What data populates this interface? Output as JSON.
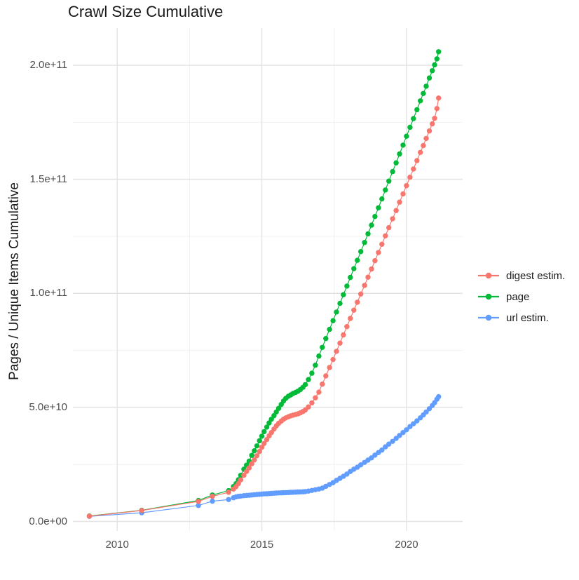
{
  "chart_data": {
    "type": "line",
    "title": "Crawl Size Cumulative",
    "xlabel": "",
    "ylabel": "Pages / Unique Items Cumulative",
    "legend_position": "right",
    "grid": "major+minor",
    "background": "#ffffff",
    "grid_major_color": "#e3e3e3",
    "grid_minor_color": "#f0f0f0",
    "axis_text_color": "#4d4d4d",
    "value_scale": "values_e9 are in units of 1e9 items",
    "xlim": [
      2008.47,
      2021.94
    ],
    "ylim_e9": [
      -4.15,
      216.3
    ],
    "x_tick_values": [
      2010,
      2015,
      2020
    ],
    "x_tick_labels": [
      "2010",
      "2015",
      "2020"
    ],
    "x_minor_ticks": [
      2012.5,
      2017.5
    ],
    "y_tick_values_e9": [
      0,
      50,
      100,
      150,
      200
    ],
    "y_tick_labels": [
      "0.0e+00",
      "5.0e+10",
      "1.0e+11",
      "1.5e+11",
      "2.0e+11"
    ],
    "y_minor_ticks_e9": [
      25,
      75,
      125,
      175
    ],
    "x": [
      2009.04,
      2010.85,
      2012.81,
      2013.29,
      2013.85,
      2014.02,
      2014.11,
      2014.19,
      2014.27,
      2014.38,
      2014.47,
      2014.56,
      2014.65,
      2014.74,
      2014.83,
      2014.92,
      2015.0,
      2015.08,
      2015.17,
      2015.25,
      2015.33,
      2015.42,
      2015.5,
      2015.58,
      2015.67,
      2015.75,
      2015.83,
      2015.92,
      2016.0,
      2016.08,
      2016.17,
      2016.25,
      2016.33,
      2016.42,
      2016.5,
      2016.61,
      2016.73,
      2016.85,
      2016.97,
      2017.09,
      2017.21,
      2017.34,
      2017.46,
      2017.58,
      2017.7,
      2017.82,
      2017.94,
      2018.06,
      2018.18,
      2018.3,
      2018.42,
      2018.55,
      2018.67,
      2018.79,
      2018.91,
      2019.03,
      2019.15,
      2019.27,
      2019.39,
      2019.52,
      2019.64,
      2019.76,
      2019.88,
      2020.0,
      2020.12,
      2020.24,
      2020.36,
      2020.48,
      2020.58,
      2020.68,
      2020.79,
      2020.89,
      2020.97,
      2021.05,
      2021.11
    ],
    "series": [
      {
        "name": "digest estim.",
        "color": "#F8766D",
        "values_e9": [
          2.3,
          4.8,
          8.8,
          11.0,
          12.8,
          14.2,
          15.3,
          16.6,
          18.2,
          20.2,
          21.9,
          23.5,
          25.3,
          27.0,
          28.8,
          30.7,
          32.5,
          34.2,
          35.9,
          37.5,
          39.0,
          40.5,
          41.9,
          43.0,
          44.0,
          44.8,
          45.4,
          45.9,
          46.3,
          46.6,
          46.9,
          47.2,
          47.6,
          48.2,
          48.9,
          50.2,
          52.0,
          54.2,
          56.7,
          60.2,
          63.8,
          67.5,
          71.0,
          74.6,
          78.2,
          81.8,
          85.4,
          89.0,
          92.6,
          96.1,
          99.7,
          103.5,
          107.1,
          110.7,
          114.3,
          117.9,
          121.5,
          125.2,
          128.8,
          132.7,
          136.3,
          140.0,
          143.6,
          147.2,
          150.9,
          154.5,
          158.2,
          161.8,
          164.8,
          167.9,
          171.2,
          174.3,
          176.7,
          181.0,
          185.6
        ]
      },
      {
        "name": "page",
        "color": "#00BA38",
        "values_e9": [
          2.4,
          4.9,
          9.2,
          11.6,
          13.5,
          15.3,
          16.6,
          18.3,
          20.2,
          22.9,
          24.7,
          26.4,
          29.0,
          31.0,
          33.1,
          35.4,
          37.4,
          39.4,
          41.4,
          43.2,
          44.8,
          46.4,
          48.0,
          49.6,
          51.3,
          52.8,
          54.0,
          54.9,
          55.5,
          56.1,
          56.6,
          57.1,
          57.8,
          58.8,
          60.0,
          62.2,
          65.0,
          68.5,
          72.5,
          76.3,
          80.2,
          84.2,
          88.0,
          91.8,
          95.6,
          99.4,
          103.2,
          107.0,
          110.8,
          114.5,
          118.3,
          122.3,
          126.1,
          129.9,
          133.7,
          137.5,
          141.4,
          145.3,
          149.2,
          153.4,
          157.2,
          161.1,
          165.0,
          168.9,
          172.8,
          176.6,
          180.5,
          184.4,
          187.6,
          190.8,
          194.4,
          197.6,
          200.2,
          202.8,
          205.9
        ]
      },
      {
        "name": "url estim.",
        "color": "#619CFF",
        "values_e9": [
          2.2,
          3.8,
          7.0,
          8.9,
          9.6,
          10.4,
          10.8,
          11.0,
          11.1,
          11.3,
          11.4,
          11.5,
          11.6,
          11.7,
          11.8,
          11.9,
          12.0,
          12.1,
          12.15,
          12.25,
          12.3,
          12.4,
          12.45,
          12.5,
          12.55,
          12.6,
          12.65,
          12.7,
          12.75,
          12.8,
          12.85,
          12.9,
          12.95,
          13.0,
          13.1,
          13.3,
          13.6,
          13.9,
          14.2,
          14.6,
          15.4,
          16.2,
          17.0,
          18.0,
          18.9,
          19.8,
          20.8,
          21.9,
          22.9,
          23.8,
          24.8,
          25.9,
          26.9,
          27.9,
          29.1,
          30.2,
          31.3,
          32.7,
          33.9,
          35.1,
          36.4,
          37.7,
          39.0,
          40.2,
          41.6,
          42.8,
          44.1,
          45.4,
          46.7,
          48.0,
          49.4,
          50.8,
          52.1,
          53.6,
          54.7
        ]
      }
    ]
  }
}
